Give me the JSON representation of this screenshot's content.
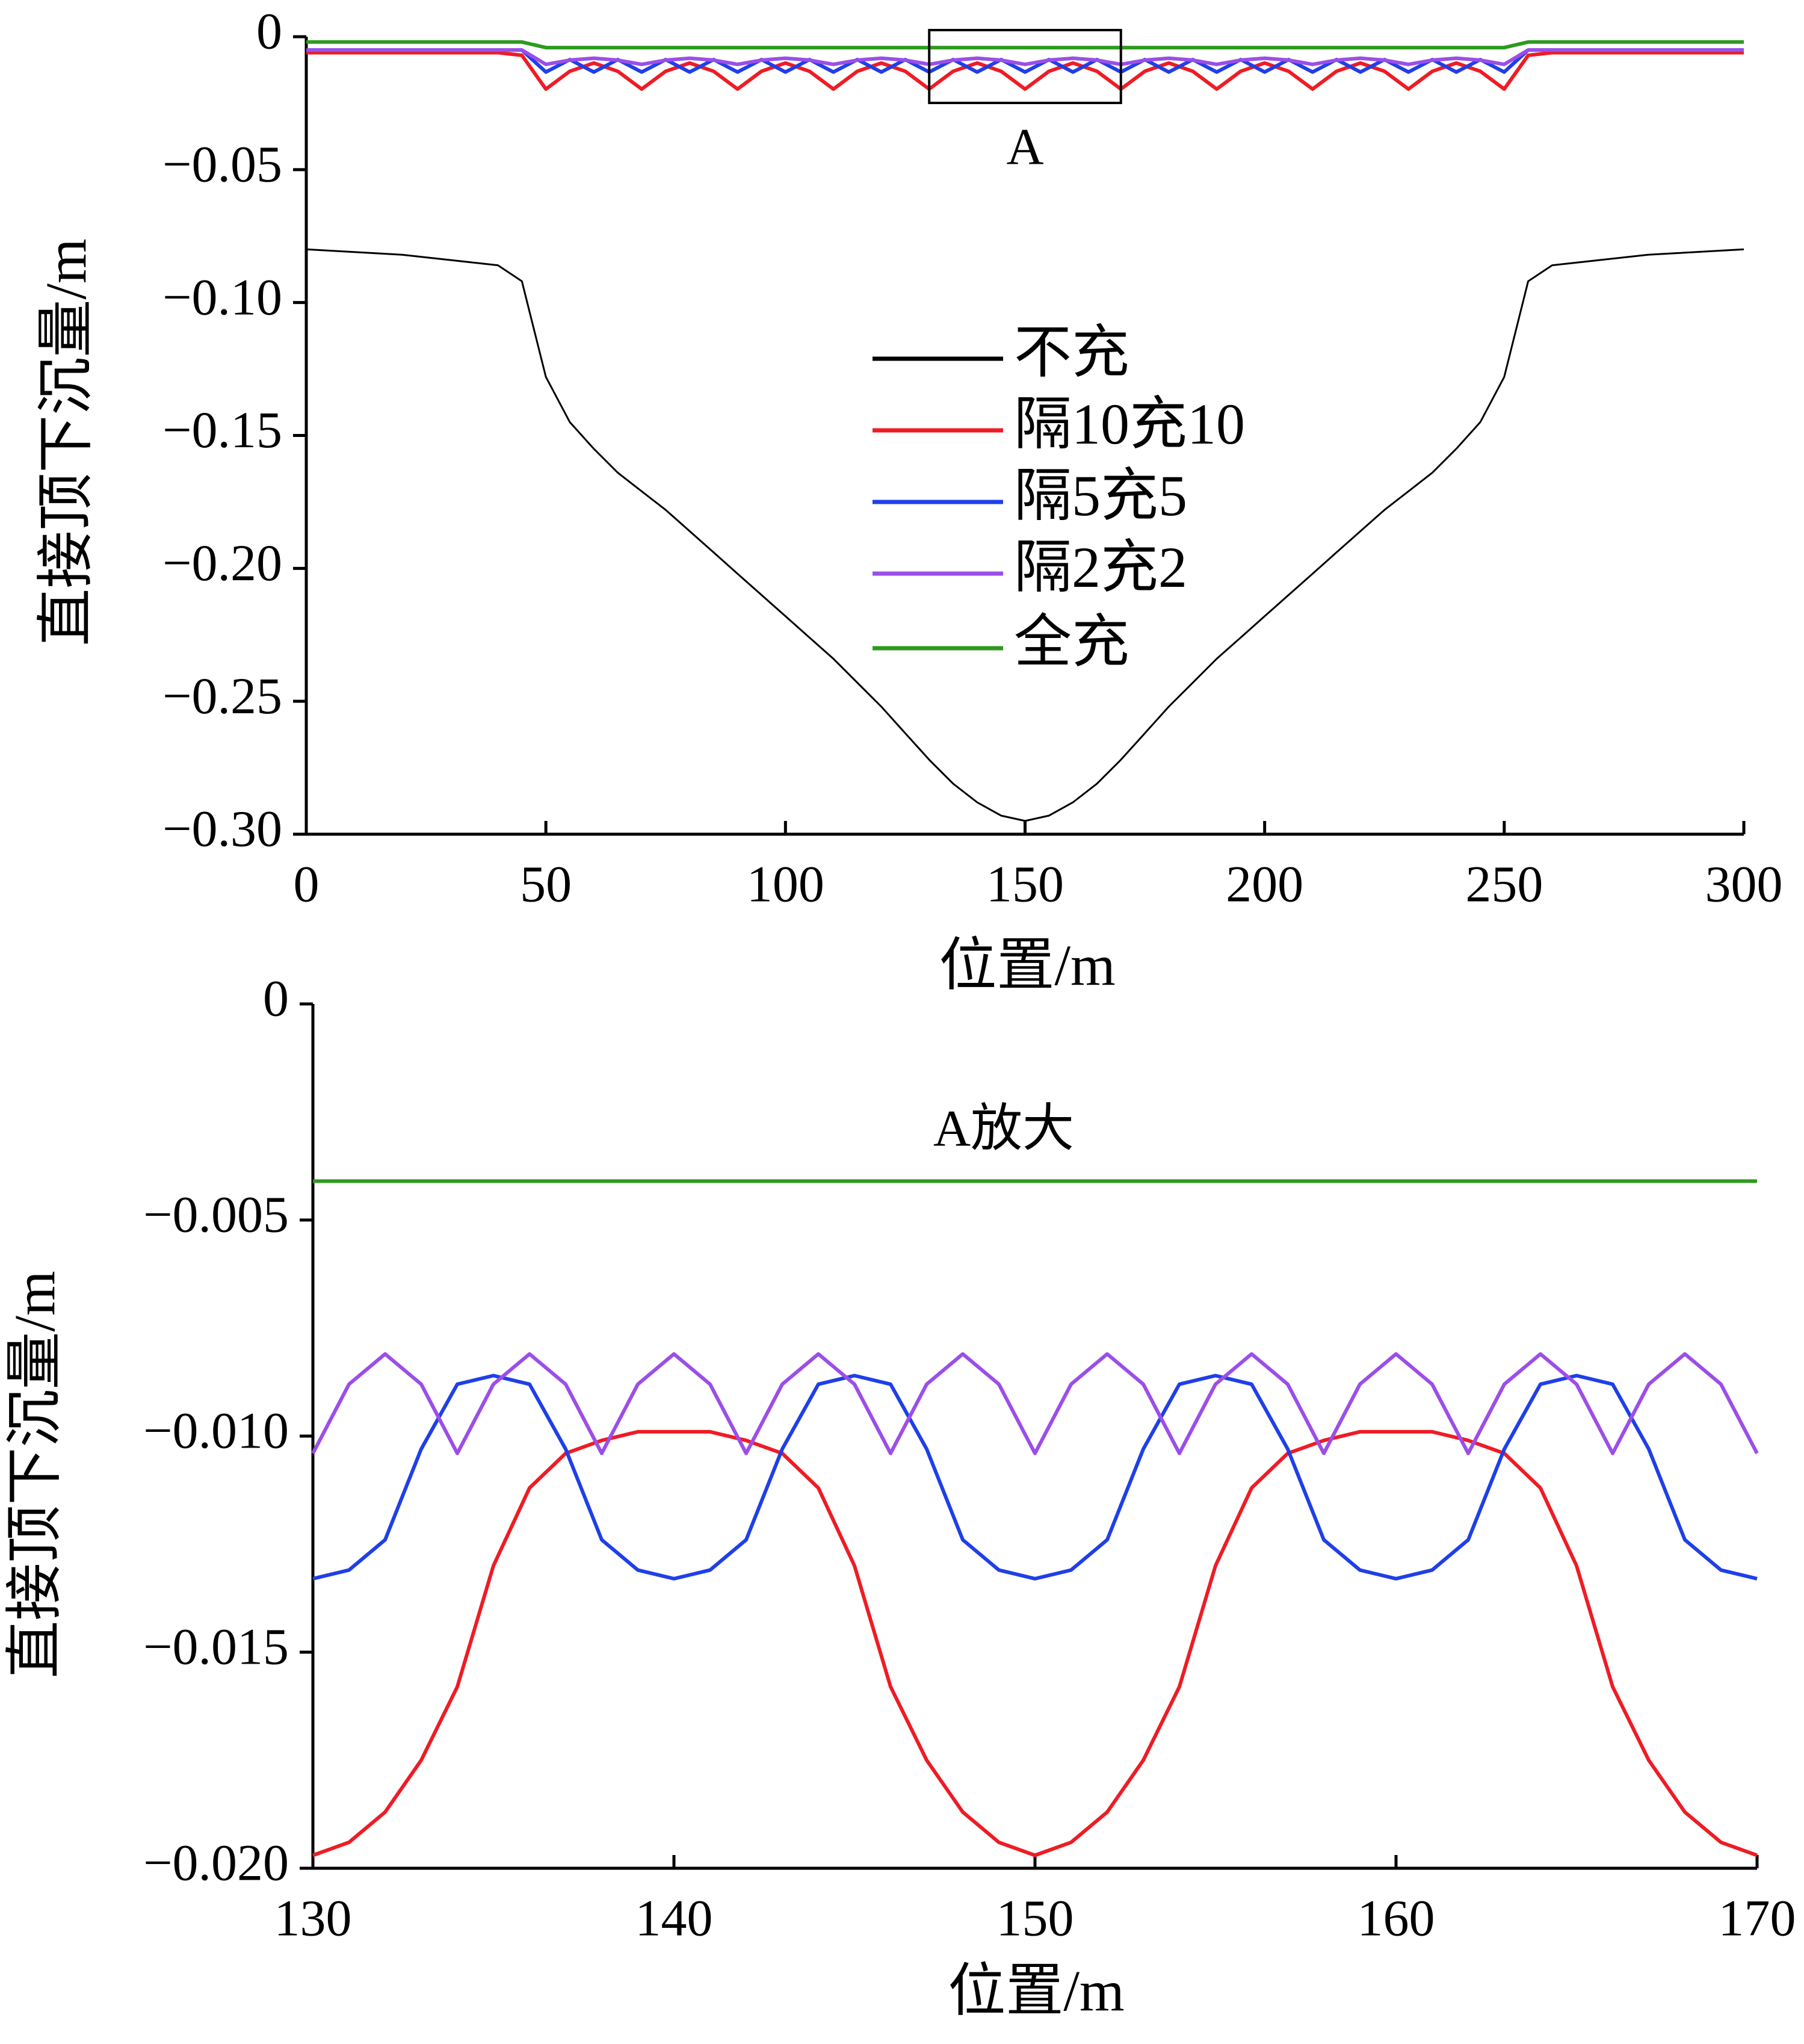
{
  "chart_data": [
    {
      "type": "line",
      "x_label": "位置/m",
      "y_label": "直接顶下沉量/m",
      "annotation": "A",
      "x": [
        0,
        5,
        10,
        15,
        20,
        25,
        30,
        35,
        40,
        45,
        50,
        55,
        60,
        65,
        70,
        75,
        80,
        85,
        90,
        95,
        100,
        105,
        110,
        115,
        120,
        125,
        130,
        135,
        140,
        145,
        150,
        155,
        160,
        165,
        170,
        175,
        180,
        185,
        190,
        195,
        200,
        205,
        210,
        215,
        220,
        225,
        230,
        235,
        240,
        245,
        250,
        255,
        260,
        265,
        270,
        275,
        280,
        285,
        290,
        295,
        300
      ],
      "series": [
        {
          "name": "不充",
          "color": "#000000",
          "values": [
            -0.08,
            -0.0805,
            -0.081,
            -0.0815,
            -0.082,
            -0.083,
            -0.084,
            -0.085,
            -0.086,
            -0.092,
            -0.128,
            -0.145,
            -0.155,
            -0.164,
            -0.171,
            -0.178,
            -0.186,
            -0.194,
            -0.202,
            -0.21,
            -0.218,
            -0.226,
            -0.234,
            -0.243,
            -0.252,
            -0.262,
            -0.272,
            -0.281,
            -0.288,
            -0.293,
            -0.295,
            -0.293,
            -0.288,
            -0.281,
            -0.272,
            -0.262,
            -0.252,
            -0.243,
            -0.234,
            -0.226,
            -0.218,
            -0.21,
            -0.202,
            -0.194,
            -0.186,
            -0.178,
            -0.171,
            -0.164,
            -0.155,
            -0.145,
            -0.128,
            -0.092,
            -0.086,
            -0.085,
            -0.084,
            -0.083,
            -0.082,
            -0.0815,
            -0.081,
            -0.0805,
            -0.08
          ]
        },
        {
          "name": "隔10充10",
          "color": "#ee1c25",
          "values": [
            -0.006,
            -0.006,
            -0.006,
            -0.006,
            -0.006,
            -0.006,
            -0.006,
            -0.006,
            -0.006,
            -0.007,
            -0.0197,
            -0.013,
            -0.0099,
            -0.013,
            -0.0197,
            -0.013,
            -0.0099,
            -0.013,
            -0.0197,
            -0.013,
            -0.0099,
            -0.013,
            -0.0197,
            -0.013,
            -0.0099,
            -0.013,
            -0.0197,
            -0.013,
            -0.0099,
            -0.013,
            -0.0197,
            -0.013,
            -0.0099,
            -0.013,
            -0.0197,
            -0.013,
            -0.0099,
            -0.013,
            -0.0197,
            -0.013,
            -0.0099,
            -0.013,
            -0.0197,
            -0.013,
            -0.0099,
            -0.013,
            -0.0197,
            -0.013,
            -0.0099,
            -0.013,
            -0.0197,
            -0.007,
            -0.006,
            -0.006,
            -0.006,
            -0.006,
            -0.006,
            -0.006,
            -0.006,
            -0.006,
            -0.006
          ]
        },
        {
          "name": "隔5充5",
          "color": "#1f3fe8",
          "values": [
            -0.005,
            -0.005,
            -0.005,
            -0.005,
            -0.005,
            -0.005,
            -0.005,
            -0.005,
            -0.005,
            -0.005,
            -0.0133,
            -0.0086,
            -0.0133,
            -0.0086,
            -0.0133,
            -0.0086,
            -0.0133,
            -0.0086,
            -0.0133,
            -0.0086,
            -0.0133,
            -0.0086,
            -0.0133,
            -0.0086,
            -0.0133,
            -0.0086,
            -0.0133,
            -0.0086,
            -0.0133,
            -0.0086,
            -0.0133,
            -0.0086,
            -0.0133,
            -0.0086,
            -0.0133,
            -0.0086,
            -0.0133,
            -0.0086,
            -0.0133,
            -0.0086,
            -0.0133,
            -0.0086,
            -0.0133,
            -0.0086,
            -0.0133,
            -0.0086,
            -0.0133,
            -0.0086,
            -0.0133,
            -0.0086,
            -0.0133,
            -0.005,
            -0.005,
            -0.005,
            -0.005,
            -0.005,
            -0.005,
            -0.005,
            -0.005,
            -0.005,
            -0.005
          ]
        },
        {
          "name": "隔2充2",
          "color": "#9b4ee8",
          "values": [
            -0.005,
            -0.005,
            -0.005,
            -0.005,
            -0.005,
            -0.005,
            -0.005,
            -0.005,
            -0.005,
            -0.005,
            -0.0104,
            -0.0088,
            -0.0081,
            -0.0088,
            -0.0104,
            -0.0088,
            -0.0081,
            -0.0088,
            -0.0104,
            -0.0088,
            -0.0081,
            -0.0088,
            -0.0104,
            -0.0088,
            -0.0081,
            -0.0088,
            -0.0104,
            -0.0088,
            -0.0081,
            -0.0088,
            -0.0104,
            -0.0088,
            -0.0081,
            -0.0088,
            -0.0104,
            -0.0088,
            -0.0081,
            -0.0088,
            -0.0104,
            -0.0088,
            -0.0081,
            -0.0088,
            -0.0104,
            -0.0088,
            -0.0081,
            -0.0088,
            -0.0104,
            -0.0088,
            -0.0081,
            -0.0088,
            -0.0104,
            -0.005,
            -0.005,
            -0.005,
            -0.005,
            -0.005,
            -0.005,
            -0.005,
            -0.005,
            -0.005,
            -0.005
          ]
        },
        {
          "name": "全充",
          "color": "#2e9a1e",
          "values": [
            -0.002,
            -0.002,
            -0.002,
            -0.002,
            -0.002,
            -0.002,
            -0.002,
            -0.002,
            -0.002,
            -0.002,
            -0.0041,
            -0.0041,
            -0.0041,
            -0.0041,
            -0.0041,
            -0.0041,
            -0.0041,
            -0.0041,
            -0.0041,
            -0.0041,
            -0.0041,
            -0.0041,
            -0.0041,
            -0.0041,
            -0.0041,
            -0.0041,
            -0.0041,
            -0.0041,
            -0.0041,
            -0.0041,
            -0.0041,
            -0.0041,
            -0.0041,
            -0.0041,
            -0.0041,
            -0.0041,
            -0.0041,
            -0.0041,
            -0.0041,
            -0.0041,
            -0.0041,
            -0.0041,
            -0.0041,
            -0.0041,
            -0.0041,
            -0.0041,
            -0.0041,
            -0.0041,
            -0.0041,
            -0.0041,
            -0.0041,
            -0.002,
            -0.002,
            -0.002,
            -0.002,
            -0.002,
            -0.002,
            -0.002,
            -0.002,
            -0.002,
            -0.002
          ]
        }
      ],
      "xlim": [
        0,
        300
      ],
      "xticks": [
        0,
        50,
        100,
        150,
        200,
        250,
        300
      ],
      "ylim": [
        -0.3,
        0
      ],
      "yticks": [
        0,
        {
          "value": -0.05,
          "label": "−0.05"
        },
        {
          "value": -0.1,
          "label": "−0.10"
        },
        {
          "value": -0.15,
          "label": "−0.15"
        },
        {
          "value": -0.2,
          "label": "−0.20"
        },
        {
          "value": -0.25,
          "label": "−0.25"
        },
        {
          "value": -0.3,
          "label": "−0.30"
        }
      ],
      "legend": "center"
    },
    {
      "type": "line",
      "x_label": "位置/m",
      "y_label": "直接顶下沉量/m",
      "annotation": "A放大",
      "x": [
        130,
        131,
        132,
        133,
        134,
        135,
        136,
        137,
        138,
        139,
        140,
        141,
        142,
        143,
        144,
        145,
        146,
        147,
        148,
        149,
        150,
        151,
        152,
        153,
        154,
        155,
        156,
        157,
        158,
        159,
        160,
        161,
        162,
        163,
        164,
        165,
        166,
        167,
        168,
        169,
        170
      ],
      "series": [
        {
          "name": "隔10充10",
          "color": "#ee1c25",
          "values": [
            -0.0197,
            -0.0194,
            -0.0187,
            -0.0175,
            -0.0158,
            -0.013,
            -0.0112,
            -0.0104,
            -0.0101,
            -0.0099,
            -0.0099,
            -0.0099,
            -0.0101,
            -0.0104,
            -0.0112,
            -0.013,
            -0.0158,
            -0.0175,
            -0.0187,
            -0.0194,
            -0.0197,
            -0.0194,
            -0.0187,
            -0.0175,
            -0.0158,
            -0.013,
            -0.0112,
            -0.0104,
            -0.0101,
            -0.0099,
            -0.0099,
            -0.0099,
            -0.0101,
            -0.0104,
            -0.0112,
            -0.013,
            -0.0158,
            -0.0175,
            -0.0187,
            -0.0194,
            -0.0197
          ]
        },
        {
          "name": "隔5充5",
          "color": "#1f3fe8",
          "values": [
            -0.0133,
            -0.0131,
            -0.0124,
            -0.0103,
            -0.0088,
            -0.0086,
            -0.0088,
            -0.0103,
            -0.0124,
            -0.0131,
            -0.0133,
            -0.0131,
            -0.0124,
            -0.0103,
            -0.0088,
            -0.0086,
            -0.0088,
            -0.0103,
            -0.0124,
            -0.0131,
            -0.0133,
            -0.0131,
            -0.0124,
            -0.0103,
            -0.0088,
            -0.0086,
            -0.0088,
            -0.0103,
            -0.0124,
            -0.0131,
            -0.0133,
            -0.0131,
            -0.0124,
            -0.0103,
            -0.0088,
            -0.0086,
            -0.0088,
            -0.0103,
            -0.0124,
            -0.0131,
            -0.0133
          ]
        },
        {
          "name": "隔2充2",
          "color": "#9b4ee8",
          "values": [
            -0.0104,
            -0.0088,
            -0.0081,
            -0.0088,
            -0.0104,
            -0.0088,
            -0.0081,
            -0.0088,
            -0.0104,
            -0.0088,
            -0.0081,
            -0.0088,
            -0.0104,
            -0.0088,
            -0.0081,
            -0.0088,
            -0.0104,
            -0.0088,
            -0.0081,
            -0.0088,
            -0.0104,
            -0.0088,
            -0.0081,
            -0.0088,
            -0.0104,
            -0.0088,
            -0.0081,
            -0.0088,
            -0.0104,
            -0.0088,
            -0.0081,
            -0.0088,
            -0.0104,
            -0.0088,
            -0.0081,
            -0.0088,
            -0.0104,
            -0.0088,
            -0.0081,
            -0.0088,
            -0.0104
          ]
        },
        {
          "name": "全充",
          "color": "#2e9a1e",
          "values": [
            -0.0041,
            -0.0041,
            -0.0041,
            -0.0041,
            -0.0041,
            -0.0041,
            -0.0041,
            -0.0041,
            -0.0041,
            -0.0041,
            -0.0041,
            -0.0041,
            -0.0041,
            -0.0041,
            -0.0041,
            -0.0041,
            -0.0041,
            -0.0041,
            -0.0041,
            -0.0041,
            -0.0041,
            -0.0041,
            -0.0041,
            -0.0041,
            -0.0041,
            -0.0041,
            -0.0041,
            -0.0041,
            -0.0041,
            -0.0041,
            -0.0041,
            -0.0041,
            -0.0041,
            -0.0041,
            -0.0041,
            -0.0041,
            -0.0041,
            -0.0041,
            -0.0041,
            -0.0041,
            -0.0041
          ]
        }
      ],
      "xlim": [
        130,
        170
      ],
      "xticks": [
        130,
        140,
        150,
        160,
        170
      ],
      "ylim": [
        -0.02,
        0
      ],
      "yticks": [
        0,
        {
          "value": -0.005,
          "label": "−0.005"
        },
        {
          "value": -0.01,
          "label": "−0.010"
        },
        {
          "value": -0.015,
          "label": "−0.015"
        },
        {
          "value": -0.02,
          "label": "−0.020"
        }
      ]
    }
  ]
}
